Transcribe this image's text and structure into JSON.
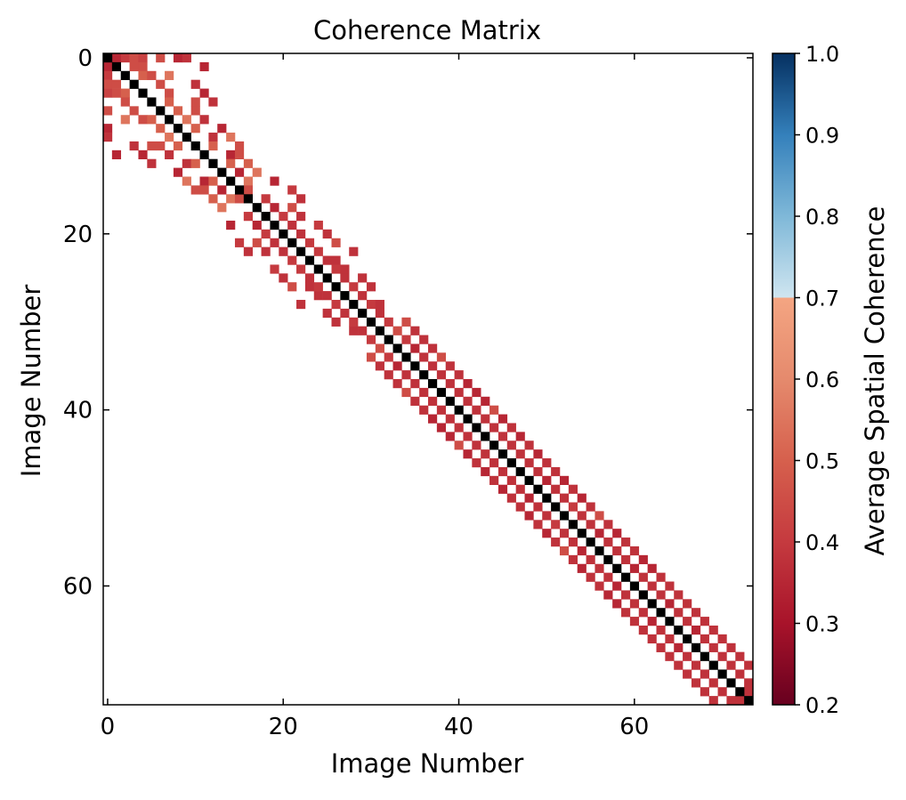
{
  "chart_data": {
    "type": "heatmap",
    "title": "Coherence Matrix",
    "xlabel": "Image Number",
    "ylabel": "Image Number",
    "size": 74,
    "xlim": [
      0,
      73
    ],
    "ylim": [
      73,
      0
    ],
    "x_ticks": [
      0,
      20,
      40,
      60
    ],
    "y_ticks": [
      0,
      20,
      40,
      60
    ],
    "grid": false,
    "colormap": "RdBu",
    "diagonal_color": "#000000",
    "colorbar": {
      "label": "Average Spatial Coherence",
      "min": 0.2,
      "max": 1.0,
      "ticks": [
        0.2,
        0.3,
        0.4,
        0.5,
        0.6,
        0.7,
        0.8,
        0.9,
        1.0
      ],
      "tick_labels": [
        "0.2",
        "0.3",
        "0.4",
        "0.5",
        "0.6",
        "0.7",
        "0.8",
        "0.9",
        "1.0"
      ],
      "stops": [
        {
          "v": 0.2,
          "c": "#67001f"
        },
        {
          "v": 0.3,
          "c": "#a8132a"
        },
        {
          "v": 0.4,
          "c": "#c53a3f"
        },
        {
          "v": 0.5,
          "c": "#d6604d"
        },
        {
          "v": 0.6,
          "c": "#e58a6d"
        },
        {
          "v": 0.7,
          "c": "#f4a582"
        },
        {
          "v": 0.7001,
          "c": "#cfe5f0"
        },
        {
          "v": 0.8,
          "c": "#7fb8d8"
        },
        {
          "v": 0.9,
          "c": "#3480bb"
        },
        {
          "v": 1.0,
          "c": "#053061"
        }
      ]
    },
    "cells": [
      [
        0,
        1,
        0.35
      ],
      [
        0,
        2,
        0.4
      ],
      [
        0,
        3,
        0.45
      ],
      [
        0,
        4,
        0.42
      ],
      [
        0,
        6,
        0.45
      ],
      [
        0,
        8,
        0.35
      ],
      [
        0,
        9,
        0.38
      ],
      [
        1,
        3,
        0.45
      ],
      [
        1,
        4,
        0.45
      ],
      [
        1,
        11,
        0.35
      ],
      [
        2,
        4,
        0.5
      ],
      [
        2,
        5,
        0.45
      ],
      [
        2,
        7,
        0.55
      ],
      [
        3,
        6,
        0.45
      ],
      [
        3,
        10,
        0.38
      ],
      [
        4,
        7,
        0.45
      ],
      [
        4,
        11,
        0.35
      ],
      [
        5,
        7,
        0.5
      ],
      [
        5,
        10,
        0.45
      ],
      [
        5,
        12,
        0.38
      ],
      [
        6,
        8,
        0.5
      ],
      [
        6,
        10,
        0.45
      ],
      [
        7,
        9,
        0.55
      ],
      [
        7,
        11,
        0.38
      ],
      [
        8,
        10,
        0.5
      ],
      [
        8,
        13,
        0.35
      ],
      [
        9,
        12,
        0.38
      ],
      [
        9,
        14,
        0.55
      ],
      [
        10,
        12,
        0.5
      ],
      [
        10,
        15,
        0.45
      ],
      [
        11,
        14,
        0.35
      ],
      [
        11,
        15,
        0.45
      ],
      [
        12,
        14,
        0.5
      ],
      [
        12,
        16,
        0.5
      ],
      [
        13,
        15,
        0.35
      ],
      [
        13,
        17,
        0.55
      ],
      [
        14,
        16,
        0.55
      ],
      [
        14,
        19,
        0.35
      ],
      [
        15,
        16,
        0.45
      ],
      [
        15,
        21,
        0.4
      ],
      [
        16,
        18,
        0.4
      ],
      [
        16,
        22,
        0.38
      ],
      [
        17,
        19,
        0.35
      ],
      [
        17,
        21,
        0.45
      ],
      [
        18,
        20,
        0.4
      ],
      [
        18,
        22,
        0.38
      ],
      [
        19,
        21,
        0.38
      ],
      [
        19,
        24,
        0.4
      ],
      [
        20,
        22,
        0.38
      ],
      [
        20,
        25,
        0.38
      ],
      [
        21,
        23,
        0.4
      ],
      [
        21,
        26,
        0.45
      ],
      [
        22,
        24,
        0.4
      ],
      [
        22,
        28,
        0.38
      ],
      [
        23,
        25,
        0.38
      ],
      [
        23,
        26,
        0.38
      ],
      [
        24,
        26,
        0.4
      ],
      [
        24,
        27,
        0.38
      ],
      [
        25,
        27,
        0.38
      ],
      [
        25,
        29,
        0.38
      ],
      [
        26,
        28,
        0.4
      ],
      [
        26,
        30,
        0.38
      ],
      [
        27,
        29,
        0.38
      ],
      [
        28,
        30,
        0.4
      ],
      [
        28,
        31,
        0.38
      ],
      [
        29,
        31,
        0.38
      ],
      [
        30,
        32,
        0.4
      ],
      [
        30,
        34,
        0.45
      ],
      [
        31,
        33,
        0.45
      ],
      [
        31,
        35,
        0.38
      ],
      [
        32,
        34,
        0.4
      ],
      [
        32,
        36,
        0.38
      ],
      [
        33,
        35,
        0.35
      ],
      [
        33,
        37,
        0.38
      ],
      [
        34,
        36,
        0.38
      ],
      [
        34,
        38,
        0.45
      ],
      [
        35,
        37,
        0.38
      ],
      [
        35,
        39,
        0.38
      ],
      [
        36,
        38,
        0.38
      ],
      [
        36,
        40,
        0.38
      ],
      [
        37,
        39,
        0.38
      ],
      [
        37,
        41,
        0.35
      ],
      [
        38,
        40,
        0.38
      ],
      [
        38,
        42,
        0.35
      ],
      [
        39,
        41,
        0.38
      ],
      [
        39,
        43,
        0.35
      ],
      [
        40,
        42,
        0.38
      ],
      [
        40,
        44,
        0.45
      ],
      [
        41,
        43,
        0.38
      ],
      [
        41,
        45,
        0.35
      ],
      [
        42,
        44,
        0.38
      ],
      [
        42,
        46,
        0.38
      ],
      [
        43,
        45,
        0.38
      ],
      [
        43,
        47,
        0.35
      ],
      [
        44,
        46,
        0.38
      ],
      [
        44,
        48,
        0.38
      ],
      [
        45,
        47,
        0.38
      ],
      [
        45,
        49,
        0.35
      ],
      [
        46,
        48,
        0.38
      ],
      [
        46,
        50,
        0.38
      ],
      [
        47,
        49,
        0.38
      ],
      [
        47,
        51,
        0.38
      ],
      [
        48,
        50,
        0.35
      ],
      [
        48,
        52,
        0.35
      ],
      [
        49,
        51,
        0.38
      ],
      [
        49,
        53,
        0.38
      ],
      [
        50,
        52,
        0.38
      ],
      [
        50,
        54,
        0.35
      ],
      [
        51,
        53,
        0.4
      ],
      [
        51,
        55,
        0.38
      ],
      [
        52,
        54,
        0.38
      ],
      [
        52,
        56,
        0.45
      ],
      [
        53,
        55,
        0.38
      ],
      [
        53,
        57,
        0.38
      ],
      [
        54,
        56,
        0.35
      ],
      [
        54,
        58,
        0.35
      ],
      [
        55,
        57,
        0.38
      ],
      [
        55,
        59,
        0.38
      ],
      [
        56,
        58,
        0.38
      ],
      [
        56,
        60,
        0.38
      ],
      [
        57,
        59,
        0.38
      ],
      [
        57,
        61,
        0.35
      ],
      [
        58,
        60,
        0.35
      ],
      [
        58,
        62,
        0.35
      ],
      [
        59,
        61,
        0.38
      ],
      [
        59,
        63,
        0.38
      ],
      [
        60,
        62,
        0.38
      ],
      [
        60,
        64,
        0.38
      ],
      [
        61,
        63,
        0.38
      ],
      [
        61,
        65,
        0.38
      ],
      [
        62,
        64,
        0.35
      ],
      [
        62,
        66,
        0.38
      ],
      [
        63,
        65,
        0.38
      ],
      [
        63,
        67,
        0.38
      ],
      [
        64,
        66,
        0.38
      ],
      [
        64,
        68,
        0.38
      ],
      [
        65,
        67,
        0.35
      ],
      [
        65,
        69,
        0.38
      ],
      [
        66,
        68,
        0.38
      ],
      [
        66,
        70,
        0.38
      ],
      [
        67,
        69,
        0.38
      ],
      [
        67,
        71,
        0.38
      ],
      [
        68,
        70,
        0.38
      ],
      [
        68,
        72,
        0.38
      ],
      [
        69,
        71,
        0.38
      ],
      [
        69,
        73,
        0.38
      ],
      [
        70,
        72,
        0.38
      ],
      [
        71,
        73,
        0.38
      ],
      [
        72,
        73,
        0.38
      ]
    ]
  }
}
